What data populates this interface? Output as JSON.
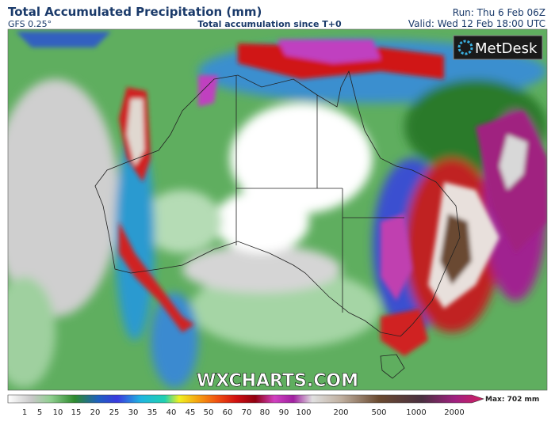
{
  "header": {
    "title": "Total Accumulated Precipitation (mm)",
    "model": "GFS 0.25°",
    "subtitle": "Total accumulation since T+0",
    "run": "Run: Thu 6 Feb 06Z",
    "valid": "Valid: Wed 12 Feb 18:00 UTC"
  },
  "map": {
    "logo": "MetDesk",
    "watermark": "WXCHARTS.COM"
  },
  "legend": {
    "ticks": [
      1,
      5,
      10,
      15,
      20,
      25,
      30,
      35,
      40,
      45,
      50,
      60,
      70,
      80,
      90,
      100,
      200,
      500,
      1000,
      2000
    ],
    "max": "Max: 702 mm"
  }
}
